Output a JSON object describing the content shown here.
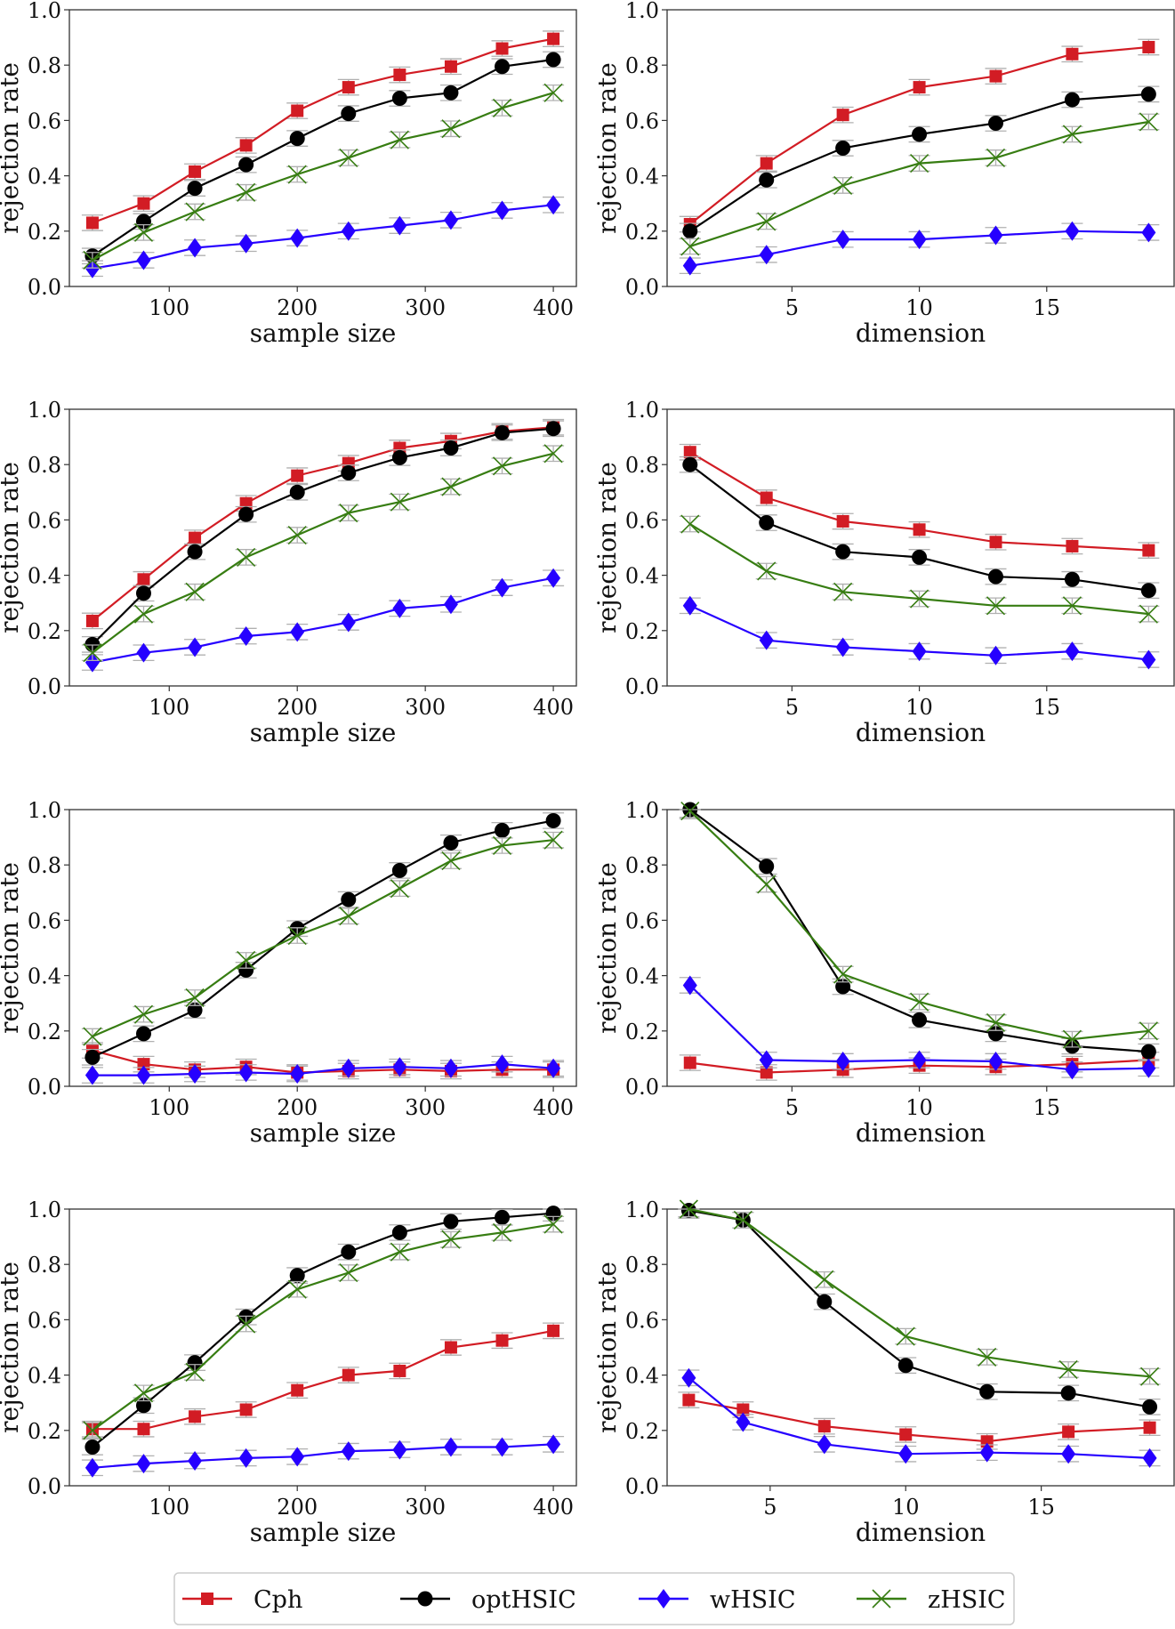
{
  "legend": {
    "placement": "bottom-center",
    "items": [
      {
        "key": "Cph",
        "label": "Cph",
        "color": "#d21c24",
        "marker": "square"
      },
      {
        "key": "optHSIC",
        "label": "optHSIC",
        "color": "#000000",
        "marker": "circle"
      },
      {
        "key": "wHSIC",
        "label": "wHSIC",
        "color": "#2600ff",
        "marker": "diamond"
      },
      {
        "key": "zHSIC",
        "label": "zHSIC",
        "color": "#377d12",
        "marker": "x"
      }
    ]
  },
  "errorbar_color": "#b0b0b0",
  "chart_data": [
    {
      "type": "line",
      "title": "",
      "xlabel": "sample size",
      "ylabel": "rejection rate",
      "xlim": [
        22,
        418
      ],
      "ylim": [
        0,
        1
      ],
      "xticks": [
        100,
        200,
        300,
        400
      ],
      "yticks": [
        0.0,
        0.2,
        0.4,
        0.6,
        0.8,
        1.0
      ],
      "x": [
        40,
        80,
        120,
        160,
        200,
        240,
        280,
        320,
        360,
        400
      ],
      "series": [
        {
          "name": "Cph",
          "values": [
            0.23,
            0.3,
            0.415,
            0.51,
            0.635,
            0.72,
            0.765,
            0.795,
            0.86,
            0.895
          ]
        },
        {
          "name": "optHSIC",
          "values": [
            0.11,
            0.235,
            0.355,
            0.44,
            0.535,
            0.625,
            0.68,
            0.7,
            0.795,
            0.82
          ]
        },
        {
          "name": "wHSIC",
          "values": [
            0.065,
            0.095,
            0.14,
            0.155,
            0.175,
            0.2,
            0.22,
            0.24,
            0.275,
            0.295
          ]
        },
        {
          "name": "zHSIC",
          "values": [
            0.095,
            0.195,
            0.27,
            0.34,
            0.405,
            0.465,
            0.53,
            0.57,
            0.645,
            0.7
          ]
        }
      ],
      "error_halfwidth": 0.028
    },
    {
      "type": "line",
      "title": "",
      "xlabel": "dimension",
      "ylabel": "rejection rate",
      "xlim": [
        0.1,
        20.0
      ],
      "ylim": [
        0,
        1
      ],
      "xticks": [
        5,
        10,
        15
      ],
      "yticks": [
        0.0,
        0.2,
        0.4,
        0.6,
        0.8,
        1.0
      ],
      "x": [
        1,
        4,
        7,
        10,
        13,
        16,
        19
      ],
      "series": [
        {
          "name": "Cph",
          "values": [
            0.225,
            0.445,
            0.62,
            0.72,
            0.76,
            0.84,
            0.865
          ]
        },
        {
          "name": "optHSIC",
          "values": [
            0.2,
            0.385,
            0.5,
            0.55,
            0.59,
            0.675,
            0.695
          ]
        },
        {
          "name": "wHSIC",
          "values": [
            0.075,
            0.115,
            0.17,
            0.17,
            0.185,
            0.2,
            0.195
          ]
        },
        {
          "name": "zHSIC",
          "values": [
            0.145,
            0.235,
            0.365,
            0.445,
            0.465,
            0.55,
            0.595
          ]
        }
      ],
      "error_halfwidth": 0.028
    },
    {
      "type": "line",
      "title": "",
      "xlabel": "sample size",
      "ylabel": "rejection rate",
      "xlim": [
        22,
        418
      ],
      "ylim": [
        0,
        1
      ],
      "xticks": [
        100,
        200,
        300,
        400
      ],
      "yticks": [
        0.0,
        0.2,
        0.4,
        0.6,
        0.8,
        1.0
      ],
      "x": [
        40,
        80,
        120,
        160,
        200,
        240,
        280,
        320,
        360,
        400
      ],
      "series": [
        {
          "name": "Cph",
          "values": [
            0.235,
            0.385,
            0.535,
            0.66,
            0.76,
            0.805,
            0.86,
            0.885,
            0.92,
            0.935
          ]
        },
        {
          "name": "optHSIC",
          "values": [
            0.15,
            0.335,
            0.485,
            0.62,
            0.7,
            0.77,
            0.825,
            0.86,
            0.915,
            0.93
          ]
        },
        {
          "name": "wHSIC",
          "values": [
            0.085,
            0.12,
            0.14,
            0.18,
            0.195,
            0.23,
            0.28,
            0.295,
            0.355,
            0.39
          ]
        },
        {
          "name": "zHSIC",
          "values": [
            0.12,
            0.26,
            0.34,
            0.465,
            0.545,
            0.625,
            0.665,
            0.72,
            0.795,
            0.84
          ]
        }
      ],
      "error_halfwidth": 0.028
    },
    {
      "type": "line",
      "title": "",
      "xlabel": "dimension",
      "ylabel": "rejection rate",
      "xlim": [
        0.1,
        20.0
      ],
      "ylim": [
        0,
        1
      ],
      "xticks": [
        5,
        10,
        15
      ],
      "yticks": [
        0.0,
        0.2,
        0.4,
        0.6,
        0.8,
        1.0
      ],
      "x": [
        1,
        4,
        7,
        10,
        13,
        16,
        19
      ],
      "series": [
        {
          "name": "Cph",
          "values": [
            0.845,
            0.68,
            0.595,
            0.565,
            0.52,
            0.505,
            0.49
          ]
        },
        {
          "name": "optHSIC",
          "values": [
            0.8,
            0.59,
            0.485,
            0.465,
            0.395,
            0.385,
            0.345
          ]
        },
        {
          "name": "wHSIC",
          "values": [
            0.29,
            0.165,
            0.14,
            0.125,
            0.11,
            0.125,
            0.095
          ]
        },
        {
          "name": "zHSIC",
          "values": [
            0.585,
            0.415,
            0.34,
            0.315,
            0.29,
            0.29,
            0.26
          ]
        }
      ],
      "error_halfwidth": 0.028
    },
    {
      "type": "line",
      "title": "",
      "xlabel": "sample size",
      "ylabel": "rejection rate",
      "xlim": [
        22,
        418
      ],
      "ylim": [
        0,
        1
      ],
      "xticks": [
        100,
        200,
        300,
        400
      ],
      "yticks": [
        0.0,
        0.2,
        0.4,
        0.6,
        0.8,
        1.0
      ],
      "x": [
        40,
        80,
        120,
        160,
        200,
        240,
        280,
        320,
        360,
        400
      ],
      "series": [
        {
          "name": "Cph",
          "values": [
            0.13,
            0.08,
            0.06,
            0.07,
            0.05,
            0.055,
            0.06,
            0.055,
            0.06,
            0.06
          ]
        },
        {
          "name": "optHSIC",
          "values": [
            0.105,
            0.19,
            0.275,
            0.42,
            0.57,
            0.675,
            0.78,
            0.88,
            0.925,
            0.96
          ]
        },
        {
          "name": "wHSIC",
          "values": [
            0.04,
            0.04,
            0.045,
            0.05,
            0.045,
            0.065,
            0.07,
            0.065,
            0.08,
            0.065
          ]
        },
        {
          "name": "zHSIC",
          "values": [
            0.18,
            0.26,
            0.32,
            0.455,
            0.545,
            0.615,
            0.715,
            0.815,
            0.87,
            0.89
          ]
        }
      ],
      "error_halfwidth": 0.028
    },
    {
      "type": "line",
      "title": "",
      "xlabel": "dimension",
      "ylabel": "rejection rate",
      "xlim": [
        0.1,
        20.0
      ],
      "ylim": [
        0,
        1
      ],
      "xticks": [
        5,
        10,
        15
      ],
      "yticks": [
        0.0,
        0.2,
        0.4,
        0.6,
        0.8,
        1.0
      ],
      "x": [
        1,
        4,
        7,
        10,
        13,
        16,
        19
      ],
      "series": [
        {
          "name": "Cph",
          "values": [
            0.085,
            0.05,
            0.06,
            0.075,
            0.07,
            0.08,
            0.095
          ]
        },
        {
          "name": "optHSIC",
          "values": [
            1.0,
            0.795,
            0.36,
            0.24,
            0.19,
            0.145,
            0.125
          ]
        },
        {
          "name": "wHSIC",
          "values": [
            0.365,
            0.095,
            0.09,
            0.095,
            0.09,
            0.06,
            0.065
          ]
        },
        {
          "name": "zHSIC",
          "values": [
            0.995,
            0.73,
            0.405,
            0.305,
            0.23,
            0.17,
            0.2
          ]
        }
      ],
      "error_halfwidth": 0.028
    },
    {
      "type": "line",
      "title": "",
      "xlabel": "sample size",
      "ylabel": "rejection rate",
      "xlim": [
        22,
        418
      ],
      "ylim": [
        0,
        1
      ],
      "xticks": [
        100,
        200,
        300,
        400
      ],
      "yticks": [
        0.0,
        0.2,
        0.4,
        0.6,
        0.8,
        1.0
      ],
      "x": [
        40,
        80,
        120,
        160,
        200,
        240,
        280,
        320,
        360,
        400
      ],
      "series": [
        {
          "name": "Cph",
          "values": [
            0.205,
            0.205,
            0.25,
            0.275,
            0.345,
            0.4,
            0.415,
            0.5,
            0.525,
            0.56
          ]
        },
        {
          "name": "optHSIC",
          "values": [
            0.14,
            0.29,
            0.445,
            0.61,
            0.76,
            0.845,
            0.915,
            0.955,
            0.97,
            0.985
          ]
        },
        {
          "name": "wHSIC",
          "values": [
            0.065,
            0.08,
            0.09,
            0.1,
            0.105,
            0.125,
            0.13,
            0.14,
            0.14,
            0.15
          ]
        },
        {
          "name": "zHSIC",
          "values": [
            0.2,
            0.335,
            0.41,
            0.585,
            0.71,
            0.77,
            0.845,
            0.89,
            0.915,
            0.945
          ]
        }
      ],
      "error_halfwidth": 0.028
    },
    {
      "type": "line",
      "title": "",
      "xlabel": "dimension",
      "ylabel": "rejection rate",
      "xlim": [
        1.2,
        19.9
      ],
      "ylim": [
        0,
        1
      ],
      "xticks": [
        5,
        10,
        15
      ],
      "yticks": [
        0.0,
        0.2,
        0.4,
        0.6,
        0.8,
        1.0
      ],
      "x": [
        2,
        4,
        7,
        10,
        13,
        16,
        19
      ],
      "series": [
        {
          "name": "Cph",
          "values": [
            0.31,
            0.275,
            0.215,
            0.185,
            0.16,
            0.195,
            0.21
          ]
        },
        {
          "name": "optHSIC",
          "values": [
            0.995,
            0.96,
            0.665,
            0.435,
            0.34,
            0.335,
            0.285
          ]
        },
        {
          "name": "wHSIC",
          "values": [
            0.39,
            0.23,
            0.15,
            0.115,
            0.12,
            0.115,
            0.1
          ]
        },
        {
          "name": "zHSIC",
          "values": [
            1.0,
            0.96,
            0.745,
            0.54,
            0.465,
            0.42,
            0.395
          ]
        }
      ],
      "error_halfwidth": 0.028
    }
  ]
}
